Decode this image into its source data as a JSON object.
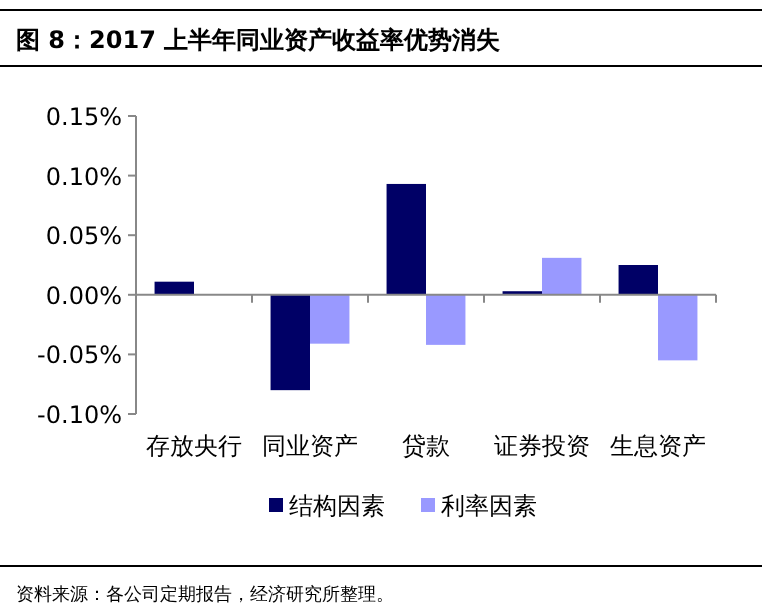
{
  "chart_data": {
    "type": "bar",
    "title": "图 8：2017 上半年同业资产收益率优势消失",
    "categories": [
      "存放央行",
      "同业资产",
      "贷款",
      "证券投资",
      "生息资产"
    ],
    "series": [
      {
        "name": "结构因素",
        "color": "#000066",
        "values": [
          0.011,
          -0.08,
          0.093,
          0.003,
          0.025
        ]
      },
      {
        "name": "利率因素",
        "color": "#9999ff",
        "values": [
          null,
          -0.041,
          -0.042,
          0.031,
          -0.055
        ]
      }
    ],
    "ylim": [
      -0.1,
      0.15
    ],
    "yticks": [
      {
        "value": -0.1,
        "label": "-0.10%"
      },
      {
        "value": -0.05,
        "label": "-0.05%"
      },
      {
        "value": 0,
        "label": "0.00%"
      },
      {
        "value": 0.05,
        "label": "0.05%"
      },
      {
        "value": 0.1,
        "label": "0.10%"
      },
      {
        "value": 0.15,
        "label": "0.15%"
      }
    ],
    "legend": "bottom",
    "annotations": [
      "资料来源：各公司定期报告，经济研究所整理。"
    ]
  }
}
